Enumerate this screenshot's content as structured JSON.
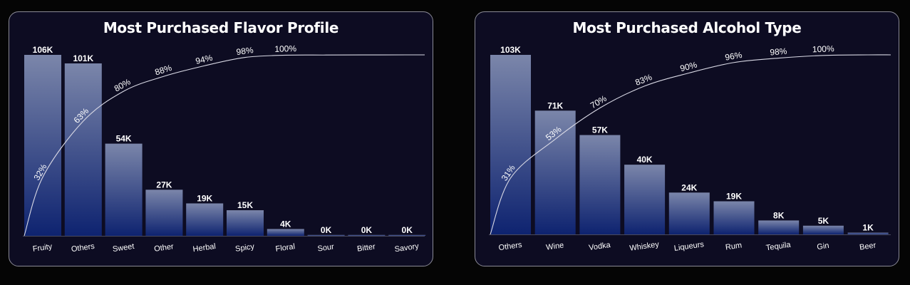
{
  "chart_data": [
    {
      "type": "bar",
      "title": "Most Purchased Flavor Profile",
      "categories": [
        "Fruity",
        "Others",
        "Sweet",
        "Other",
        "Herbal",
        "Spicy",
        "Floral",
        "Sour",
        "Bitter",
        "Savory"
      ],
      "values": [
        106,
        101,
        54,
        27,
        19,
        15,
        4,
        0.3,
        0.2,
        0.1
      ],
      "value_labels": [
        "106K",
        "101K",
        "54K",
        "27K",
        "19K",
        "15K",
        "4K",
        "0K",
        "0K",
        "0K"
      ],
      "cumulative_line": {
        "type": "line",
        "labels": [
          "32%",
          "63%",
          "80%",
          "88%",
          "94%",
          "98%",
          "100%"
        ],
        "values": [
          32,
          63,
          80,
          88,
          94,
          98,
          100
        ]
      },
      "ylim": [
        0,
        106
      ],
      "grid": false,
      "legend": "none",
      "xlabel": "",
      "ylabel": ""
    },
    {
      "type": "bar",
      "title": "Most Purchased Alcohol Type",
      "categories": [
        "Others",
        "Wine",
        "Vodka",
        "Whiskey",
        "Liqueurs",
        "Rum",
        "Tequila",
        "Gin",
        "Beer"
      ],
      "values": [
        103,
        71,
        57,
        40,
        24,
        19,
        8,
        5,
        1
      ],
      "value_labels": [
        "103K",
        "71K",
        "57K",
        "40K",
        "24K",
        "19K",
        "8K",
        "5K",
        "1K"
      ],
      "cumulative_line": {
        "type": "line",
        "labels": [
          "31%",
          "53%",
          "70%",
          "83%",
          "90%",
          "96%",
          "98%",
          "100%"
        ],
        "values": [
          31,
          53,
          70,
          83,
          90,
          96,
          98,
          100
        ]
      },
      "ylim": [
        0,
        103
      ],
      "grid": false,
      "legend": "none",
      "xlabel": "",
      "ylabel": ""
    }
  ],
  "colors": {
    "bar_top": "#7b86aa",
    "bar_bottom": "#0e2370",
    "line": "#d8d8e4",
    "text": "#ffffff",
    "card_bg": "#0d0c22",
    "card_border": "#8a8a96"
  }
}
